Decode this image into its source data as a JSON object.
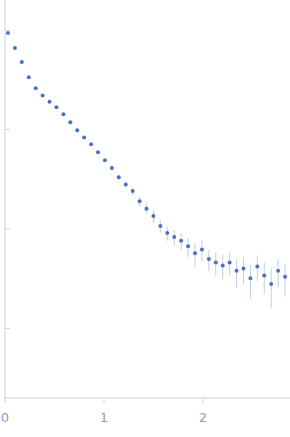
{
  "chart_data": {
    "type": "scatter",
    "color": "#4a72c0",
    "marker": "circle",
    "log": "y",
    "grid": false,
    "tick_labels": "x",
    "x": [
      0.03,
      0.1,
      0.17,
      0.24,
      0.31,
      0.38,
      0.45,
      0.52,
      0.59,
      0.66,
      0.73,
      0.8,
      0.87,
      0.94,
      1.01,
      1.08,
      1.15,
      1.22,
      1.29,
      1.36,
      1.43,
      1.5,
      1.57,
      1.64,
      1.71,
      1.78,
      1.85,
      1.92,
      1.99,
      2.06,
      2.13,
      2.2,
      2.27,
      2.34,
      2.41,
      2.48,
      2.55,
      2.62,
      2.69,
      2.76,
      2.83
    ],
    "values": [
      0.93,
      0.66,
      0.475,
      0.335,
      0.26,
      0.22,
      0.19,
      0.167,
      0.142,
      0.118,
      0.098,
      0.083,
      0.071,
      0.059,
      0.049,
      0.041,
      0.033,
      0.028,
      0.024,
      0.019,
      0.016,
      0.0135,
      0.0107,
      0.0091,
      0.0083,
      0.0076,
      0.0067,
      0.0057,
      0.0062,
      0.005,
      0.0046,
      0.0043,
      0.0046,
      0.0038,
      0.004,
      0.0032,
      0.0042,
      0.0034,
      0.0028,
      0.0038,
      0.0033
    ],
    "errors": [
      0.005,
      0.004,
      0.003,
      0.002,
      0.002,
      0.002,
      0.002,
      0.002,
      0.002,
      0.002,
      0.002,
      0.002,
      0.002,
      0.002,
      0.002,
      0.002,
      0.002,
      0.002,
      0.002,
      0.002,
      0.002,
      0.002,
      0.0015,
      0.0015,
      0.0015,
      0.0015,
      0.0015,
      0.0015,
      0.0015,
      0.0012,
      0.0012,
      0.0012,
      0.0012,
      0.0012,
      0.0012,
      0.0012,
      0.0012,
      0.0012,
      0.0012,
      0.0012,
      0.0012
    ],
    "xlim": [
      0,
      2.88
    ],
    "xticks": [
      0,
      1,
      2
    ],
    "ylim": [
      0.0002,
      2
    ],
    "yticks": [
      0.001,
      0.01,
      0.1,
      1
    ]
  }
}
